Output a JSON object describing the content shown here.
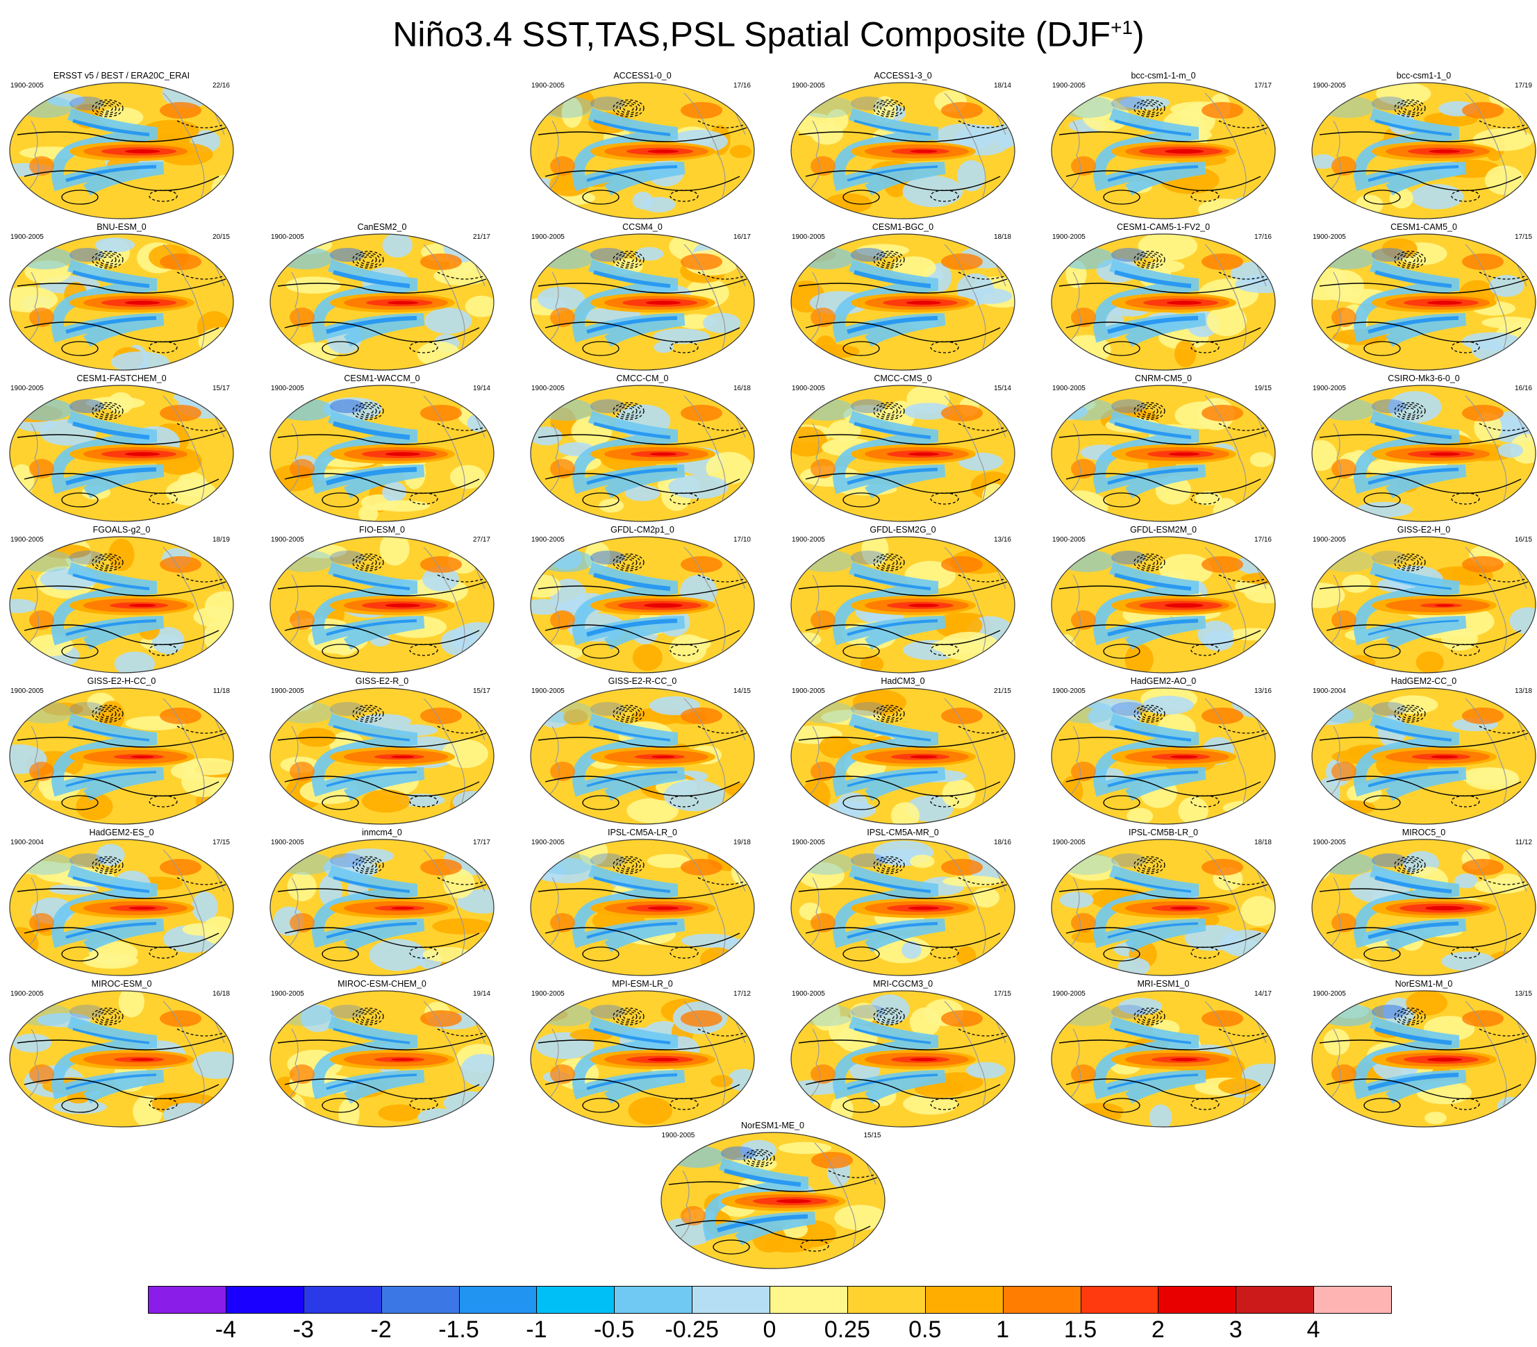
{
  "title": {
    "main": "Niño3.4 SST,TAS,PSL Spatial Composite (DJF",
    "sup": "+1",
    "close": ")"
  },
  "panels": [
    {
      "name": "ERSST v5 / BEST / ERA20C_ERAI",
      "period": "1900-2005",
      "ratio": "22/16",
      "row": 0,
      "col": 0,
      "hot": 0.9,
      "dip": 0.7
    },
    {
      "name": "ACCESS1-0_0",
      "period": "1900-2005",
      "ratio": "17/16",
      "row": 0,
      "col": 2,
      "hot": 0.8,
      "dip": 0.6
    },
    {
      "name": "ACCESS1-3_0",
      "period": "1900-2005",
      "ratio": "18/14",
      "row": 0,
      "col": 3,
      "hot": 0.7,
      "dip": 0.5
    },
    {
      "name": "bcc-csm1-1-m_0",
      "period": "1900-2005",
      "ratio": "17/17",
      "row": 0,
      "col": 4,
      "hot": 1.0,
      "dip": 0.6
    },
    {
      "name": "bcc-csm1-1_0",
      "period": "1900-2005",
      "ratio": "17/19",
      "row": 0,
      "col": 5,
      "hot": 0.8,
      "dip": 0.6
    },
    {
      "name": "BNU-ESM_0",
      "period": "1900-2005",
      "ratio": "20/15",
      "row": 1,
      "col": 0,
      "hot": 0.9,
      "dip": 0.8
    },
    {
      "name": "CanESM2_0",
      "period": "1900-2005",
      "ratio": "21/17",
      "row": 1,
      "col": 1,
      "hot": 0.8,
      "dip": 0.9
    },
    {
      "name": "CCSM4_0",
      "period": "1900-2005",
      "ratio": "16/17",
      "row": 1,
      "col": 2,
      "hot": 0.9,
      "dip": 0.8
    },
    {
      "name": "CESM1-BGC_0",
      "period": "1900-2005",
      "ratio": "18/18",
      "row": 1,
      "col": 3,
      "hot": 0.9,
      "dip": 0.9
    },
    {
      "name": "CESM1-CAM5-1-FV2_0",
      "period": "1900-2005",
      "ratio": "17/16",
      "row": 1,
      "col": 4,
      "hot": 0.9,
      "dip": 0.9
    },
    {
      "name": "CESM1-CAM5_0",
      "period": "1900-2005",
      "ratio": "17/15",
      "row": 1,
      "col": 5,
      "hot": 0.9,
      "dip": 0.8
    },
    {
      "name": "CESM1-FASTCHEM_0",
      "period": "1900-2005",
      "ratio": "15/17",
      "row": 2,
      "col": 0,
      "hot": 0.9,
      "dip": 0.9
    },
    {
      "name": "CESM1-WACCM_0",
      "period": "1900-2005",
      "ratio": "19/14",
      "row": 2,
      "col": 1,
      "hot": 0.9,
      "dip": 1.0
    },
    {
      "name": "CMCC-CM_0",
      "period": "1900-2005",
      "ratio": "16/18",
      "row": 2,
      "col": 2,
      "hot": 0.7,
      "dip": 0.7
    },
    {
      "name": "CMCC-CMS_0",
      "period": "1900-2005",
      "ratio": "15/14",
      "row": 2,
      "col": 3,
      "hot": 0.8,
      "dip": 0.7
    },
    {
      "name": "CNRM-CM5_0",
      "period": "1900-2005",
      "ratio": "19/15",
      "row": 2,
      "col": 4,
      "hot": 0.8,
      "dip": 0.7
    },
    {
      "name": "CSIRO-Mk3-6-0_0",
      "period": "1900-2005",
      "ratio": "16/16",
      "row": 2,
      "col": 5,
      "hot": 0.8,
      "dip": 0.7
    },
    {
      "name": "FGOALS-g2_0",
      "period": "1900-2005",
      "ratio": "18/19",
      "row": 3,
      "col": 0,
      "hot": 0.7,
      "dip": 0.6
    },
    {
      "name": "FIO-ESM_0",
      "period": "1900-2005",
      "ratio": "27/17",
      "row": 3,
      "col": 1,
      "hot": 0.9,
      "dip": 0.6
    },
    {
      "name": "GFDL-CM2p1_0",
      "period": "1900-2005",
      "ratio": "17/10",
      "row": 3,
      "col": 2,
      "hot": 1.0,
      "dip": 0.9
    },
    {
      "name": "GFDL-ESM2G_0",
      "period": "1900-2005",
      "ratio": "13/16",
      "row": 3,
      "col": 3,
      "hot": 0.8,
      "dip": 0.6
    },
    {
      "name": "GFDL-ESM2M_0",
      "period": "1900-2005",
      "ratio": "17/16",
      "row": 3,
      "col": 4,
      "hot": 1.0,
      "dip": 0.8
    },
    {
      "name": "GISS-E2-H_0",
      "period": "1900-2005",
      "ratio": "16/15",
      "row": 3,
      "col": 5,
      "hot": 0.5,
      "dip": 0.4
    },
    {
      "name": "GISS-E2-H-CC_0",
      "period": "1900-2005",
      "ratio": "11/18",
      "row": 4,
      "col": 0,
      "hot": 0.6,
      "dip": 0.5
    },
    {
      "name": "GISS-E2-R_0",
      "period": "1900-2005",
      "ratio": "15/17",
      "row": 4,
      "col": 1,
      "hot": 0.6,
      "dip": 0.5
    },
    {
      "name": "GISS-E2-R-CC_0",
      "period": "1900-2005",
      "ratio": "14/15",
      "row": 4,
      "col": 2,
      "hot": 0.6,
      "dip": 0.5
    },
    {
      "name": "HadCM3_0",
      "period": "1900-2005",
      "ratio": "21/15",
      "row": 4,
      "col": 3,
      "hot": 0.7,
      "dip": 0.5
    },
    {
      "name": "HadGEM2-AO_0",
      "period": "1900-2005",
      "ratio": "13/16",
      "row": 4,
      "col": 4,
      "hot": 0.7,
      "dip": 0.6
    },
    {
      "name": "HadGEM2-CC_0",
      "period": "1900-2004",
      "ratio": "13/18",
      "row": 4,
      "col": 5,
      "hot": 0.7,
      "dip": 0.6
    },
    {
      "name": "HadGEM2-ES_0",
      "period": "1900-2004",
      "ratio": "17/15",
      "row": 5,
      "col": 0,
      "hot": 0.7,
      "dip": 0.6
    },
    {
      "name": "inmcm4_0",
      "period": "1900-2005",
      "ratio": "17/17",
      "row": 5,
      "col": 1,
      "hot": 0.6,
      "dip": 0.6
    },
    {
      "name": "IPSL-CM5A-LR_0",
      "period": "1900-2005",
      "ratio": "19/18",
      "row": 5,
      "col": 2,
      "hot": 0.8,
      "dip": 0.6
    },
    {
      "name": "IPSL-CM5A-MR_0",
      "period": "1900-2005",
      "ratio": "18/16",
      "row": 5,
      "col": 3,
      "hot": 0.8,
      "dip": 0.6
    },
    {
      "name": "IPSL-CM5B-LR_0",
      "period": "1900-2005",
      "ratio": "18/18",
      "row": 5,
      "col": 4,
      "hot": 0.7,
      "dip": 0.5
    },
    {
      "name": "MIROC5_0",
      "period": "1900-2005",
      "ratio": "11/12",
      "row": 5,
      "col": 5,
      "hot": 1.0,
      "dip": 0.8
    },
    {
      "name": "MIROC-ESM_0",
      "period": "1900-2005",
      "ratio": "16/18",
      "row": 6,
      "col": 0,
      "hot": 0.6,
      "dip": 0.5
    },
    {
      "name": "MIROC-ESM-CHEM_0",
      "period": "1900-2005",
      "ratio": "19/14",
      "row": 6,
      "col": 1,
      "hot": 0.6,
      "dip": 0.5
    },
    {
      "name": "MPI-ESM-LR_0",
      "period": "1900-2005",
      "ratio": "17/12",
      "row": 6,
      "col": 2,
      "hot": 0.8,
      "dip": 0.6
    },
    {
      "name": "MRI-CGCM3_0",
      "period": "1900-2005",
      "ratio": "17/15",
      "row": 6,
      "col": 3,
      "hot": 0.7,
      "dip": 0.5
    },
    {
      "name": "MRI-ESM1_0",
      "period": "1900-2005",
      "ratio": "14/17",
      "row": 6,
      "col": 4,
      "hot": 0.7,
      "dip": 0.5
    },
    {
      "name": "NorESM1-M_0",
      "period": "1900-2005",
      "ratio": "13/15",
      "row": 6,
      "col": 5,
      "hot": 0.9,
      "dip": 0.9
    },
    {
      "name": "NorESM1-ME_0",
      "period": "1900-2005",
      "ratio": "15/15",
      "row": 7,
      "col": 2.5,
      "hot": 0.9,
      "dip": 0.9
    }
  ],
  "colorbar": {
    "colors": [
      "#8a1ee8",
      "#1a00ff",
      "#2a3ae8",
      "#3b78e6",
      "#2194f2",
      "#00bff6",
      "#6fc9f2",
      "#b5def4",
      "#fff68c",
      "#ffd230",
      "#ffae00",
      "#ff7d00",
      "#ff3a0e",
      "#e80000",
      "#cc1a1a",
      "#ffb4b4"
    ],
    "labels": [
      "-4",
      "-3",
      "-2",
      "-1.5",
      "-1",
      "-0.5",
      "-0.25",
      "0",
      "0.25",
      "0.5",
      "1",
      "1.5",
      "2",
      "3",
      "4"
    ]
  }
}
